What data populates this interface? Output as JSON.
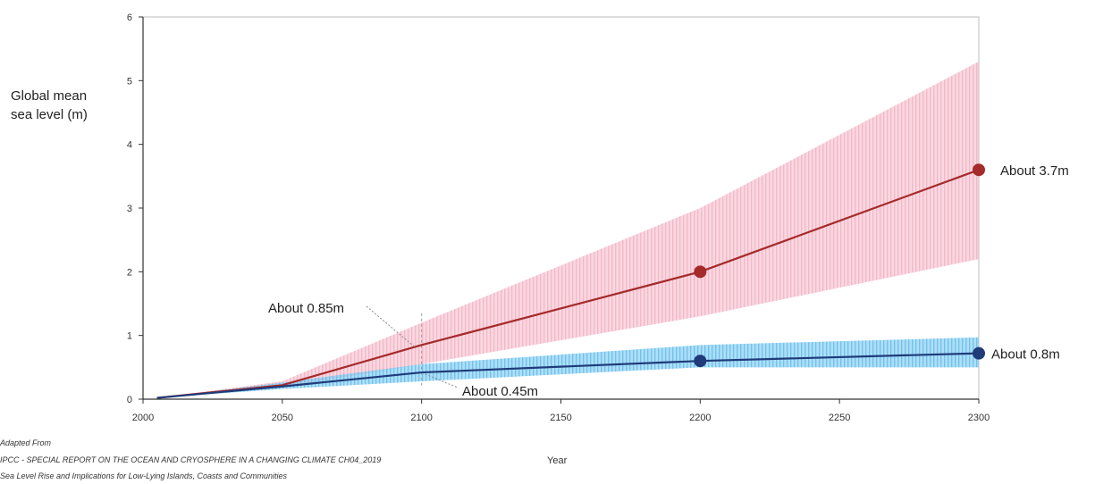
{
  "chart_data": {
    "type": "line",
    "title": "",
    "ylabel_lines": [
      "Global mean",
      "sea level (m)"
    ],
    "xlabel": "Year",
    "xlim": [
      2000,
      2300
    ],
    "ylim": [
      0,
      6
    ],
    "x_ticks": [
      "2000",
      "2050",
      "2100",
      "2150",
      "2200",
      "2250",
      "2300"
    ],
    "y_ticks": [
      "0",
      "1",
      "2",
      "3",
      "4",
      "5",
      "6"
    ],
    "grid": false,
    "series": [
      {
        "color": "#a52a2a",
        "band_color": "#f4b8c8",
        "x": [
          2005,
          2050,
          2100,
          2200,
          2300
        ],
        "values": [
          0.02,
          0.22,
          0.85,
          2.0,
          3.6
        ],
        "lower": [
          0.02,
          0.18,
          0.55,
          1.3,
          2.2
        ],
        "upper": [
          0.02,
          0.28,
          1.2,
          3.0,
          5.3
        ],
        "markers": [
          {
            "x": 2200,
            "y": 2.0
          },
          {
            "x": 2300,
            "y": 3.6
          }
        ]
      },
      {
        "color": "#1f3b7a",
        "band_color": "#6fc3ee",
        "x": [
          2005,
          2050,
          2100,
          2200,
          2300
        ],
        "values": [
          0.02,
          0.2,
          0.42,
          0.6,
          0.72
        ],
        "lower": [
          0.02,
          0.16,
          0.28,
          0.5,
          0.5
        ],
        "upper": [
          0.02,
          0.26,
          0.55,
          0.85,
          0.97
        ],
        "markers": [
          {
            "x": 2200,
            "y": 0.6
          },
          {
            "x": 2300,
            "y": 0.72
          }
        ]
      }
    ],
    "annotations": [
      {
        "text": "About 3.7m",
        "x": 2300,
        "y": 3.6
      },
      {
        "text": "About 0.8m",
        "x": 2300,
        "y": 0.72
      },
      {
        "text": "About 0.85m",
        "x": 2100,
        "y": 0.85
      },
      {
        "text": "About 0.45m",
        "x": 2100,
        "y": 0.42
      }
    ],
    "legend": "none"
  },
  "source_lines": [
    "Adapted From",
    "IPCC - SPECIAL REPORT ON THE OCEAN AND CRYOSPHERE IN A CHANGING CLIMATE CH04_2019",
    "Sea Level Rise and Implications for Low-Lying Islands, Coasts and Communities"
  ]
}
